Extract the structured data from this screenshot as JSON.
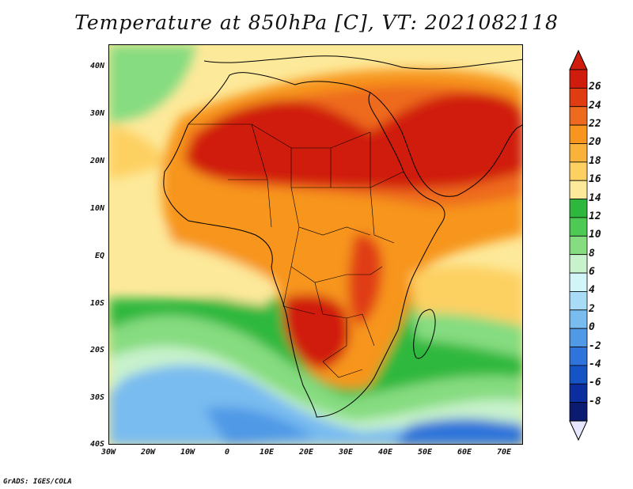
{
  "map": {
    "title": "Temperature at 850hPa [C], VT: 2021082118",
    "variable": "Temperature at 850hPa",
    "units": "C",
    "valid_time": "2021082118",
    "lon_range": [
      -30,
      75
    ],
    "lat_range": [
      -40,
      45
    ],
    "lat_ticks": [
      "40N",
      "30N",
      "20N",
      "10N",
      "EQ",
      "10S",
      "20S",
      "30S",
      "40S"
    ],
    "lon_ticks": [
      "30W",
      "20W",
      "10W",
      "0",
      "10E",
      "20E",
      "30E",
      "40E",
      "50E",
      "60E",
      "70E"
    ],
    "credit": "GrADS: IGES/COLA"
  },
  "colorbar": {
    "labels": [
      "26",
      "24",
      "22",
      "20",
      "18",
      "16",
      "14",
      "12",
      "10",
      "8",
      "6",
      "4",
      "2",
      "0",
      "-2",
      "-4",
      "-6",
      "-8"
    ],
    "colors": [
      "#d01c0c",
      "#e03c12",
      "#ee6a1e",
      "#f7951f",
      "#fab33a",
      "#fdd062",
      "#fde99a",
      "#2db83d",
      "#4cca54",
      "#86dc80",
      "#c8f2cc",
      "#d2f5f8",
      "#a8dcf6",
      "#79bcf0",
      "#4f99e6",
      "#2e74da",
      "#1454c4",
      "#0c2d9e",
      "#0a1b70"
    ],
    "end_arrow_top": "#d01c0c",
    "end_arrow_bottom": "#e6e6ff"
  }
}
